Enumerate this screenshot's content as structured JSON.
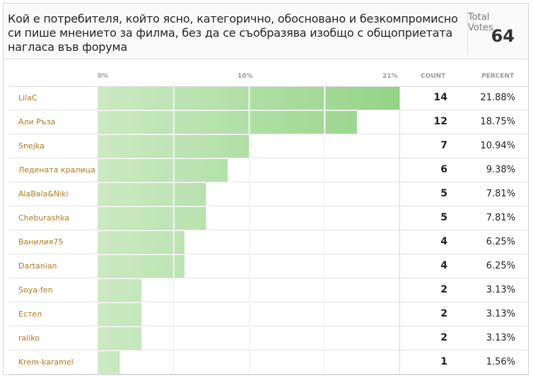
{
  "poll": {
    "question": "Кой е потребителя, който ясно, категорично, обосновано и безкомпромисно си пише мнението за филма, без да се съобразява изобщо с общоприетата нагласа във форума",
    "total_votes_label": "Total Votes",
    "total_votes": "64"
  },
  "table_headers": {
    "axis_min": "0%",
    "axis_mid": "10%",
    "axis_max": "21%",
    "count": "COUNT",
    "percent": "PERCENT"
  },
  "colors": {
    "bar_light": "#cbeac3",
    "bar_dark": "#94d486",
    "label": "#b07a17",
    "grid": "#d9d9d9"
  },
  "chart_data": {
    "type": "bar",
    "orientation": "horizontal",
    "categories": [
      "LilaC",
      "Али Ръза",
      "Snejka",
      "Ледената кралица",
      "AlaBala&Niki",
      "Cheburashka",
      "Ванилия75",
      "Dartanian",
      "Soya-fen",
      "Естел",
      "raliko",
      "Krem-karamel"
    ],
    "values": [
      14,
      12,
      7,
      6,
      5,
      5,
      4,
      4,
      2,
      2,
      2,
      1
    ],
    "percents": [
      "21.88%",
      "18.75%",
      "10.94%",
      "9.38%",
      "7.81%",
      "7.81%",
      "6.25%",
      "6.25%",
      "3.13%",
      "3.13%",
      "3.13%",
      "1.56%"
    ],
    "percent_values": [
      21.88,
      18.75,
      10.94,
      9.38,
      7.81,
      7.81,
      6.25,
      6.25,
      3.13,
      3.13,
      3.13,
      1.56
    ],
    "xlim": [
      0,
      21.88
    ],
    "grid": true
  }
}
